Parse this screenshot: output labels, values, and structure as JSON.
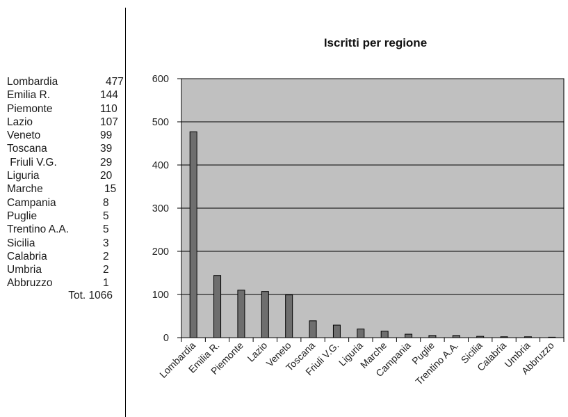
{
  "table": {
    "rows": [
      {
        "name": "Lombardia",
        "value": "477"
      },
      {
        "name": "Emilia R.",
        "value": "144"
      },
      {
        "name": "Piemonte",
        "value": "110"
      },
      {
        "name": "Lazio",
        "value": "107"
      },
      {
        "name": "Veneto",
        "value": "99"
      },
      {
        "name": "Toscana",
        "value": "39"
      },
      {
        "name": " Friuli V.G.",
        "value": "29"
      },
      {
        "name": "Liguria",
        "value": "20"
      },
      {
        "name": "Marche",
        "value": "15"
      },
      {
        "name": "Campania",
        "value": "8"
      },
      {
        "name": "Puglie",
        "value": "5"
      },
      {
        "name": "Trentino A.A.",
        "value": "5"
      },
      {
        "name": "Sicilia",
        "value": "3"
      },
      {
        "name": "Calabria",
        "value": "2"
      },
      {
        "name": "Umbria",
        "value": "2"
      },
      {
        "name": "Abbruzzo",
        "value": "1"
      }
    ],
    "total_label": "Tot.",
    "total_value": "1066"
  },
  "chart_data": {
    "type": "bar",
    "title": "Iscritti per regione",
    "xlabel": "",
    "ylabel": "",
    "categories": [
      "Lombardia",
      "Emilia R.",
      "Piemonte",
      "Lazio",
      "Veneto",
      "Toscana",
      "Friuli V.G.",
      "Liguria",
      "Marche",
      "Campania",
      "Puglie",
      "Trentino A.A.",
      "Sicilia",
      "Calabria",
      "Umbria",
      "Abbruzzo"
    ],
    "values": [
      477,
      144,
      110,
      107,
      99,
      39,
      29,
      20,
      15,
      8,
      5,
      5,
      3,
      2,
      2,
      1
    ],
    "ylim": [
      0,
      600
    ],
    "yticks": [
      0,
      100,
      200,
      300,
      400,
      500,
      600
    ],
    "grid": true,
    "legend": "none",
    "colors": {
      "plot_background": "#c0c0c0",
      "bar_fill": "#6e6e6e",
      "bar_stroke": "#000000",
      "gridline": "#000000"
    }
  }
}
